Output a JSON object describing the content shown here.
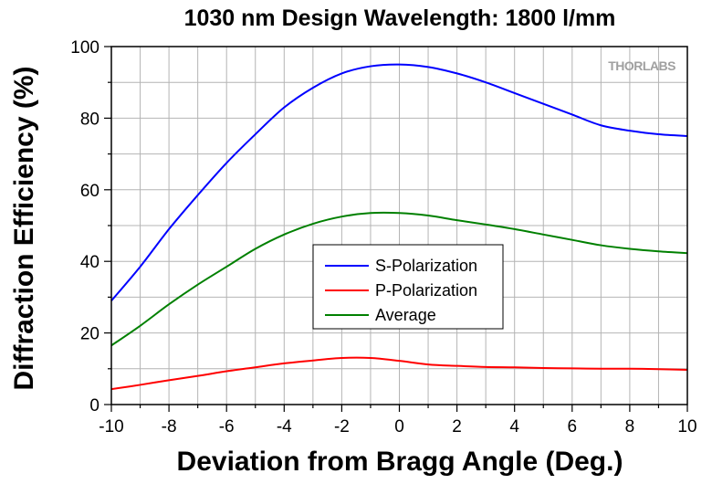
{
  "chart_data": {
    "type": "line",
    "title": "1030 nm Design Wavelength: 1800 l/mm",
    "xlabel": "Deviation from Bragg Angle (Deg.)",
    "ylabel": "Diffraction Efficiency (%)",
    "xlim": [
      -10,
      10
    ],
    "ylim": [
      0,
      100
    ],
    "xticks": [
      -10,
      -8,
      -6,
      -4,
      -2,
      0,
      2,
      4,
      6,
      8,
      10
    ],
    "yticks": [
      0,
      20,
      40,
      60,
      80,
      100
    ],
    "grid": true,
    "legend_position": "center",
    "watermark": "THORLABS",
    "series": [
      {
        "name": "S-Polarization",
        "color": "#0000ff",
        "x": [
          -10,
          -9,
          -8,
          -7,
          -6,
          -5,
          -4,
          -3,
          -2,
          -1,
          0,
          1,
          2,
          3,
          4,
          5,
          6,
          7,
          8,
          9,
          10
        ],
        "y": [
          29,
          38.5,
          49,
          58.5,
          67.5,
          75.5,
          83,
          88.5,
          92.5,
          94.5,
          95,
          94.3,
          92.5,
          90,
          87,
          84,
          81,
          78,
          76.5,
          75.5,
          75
        ]
      },
      {
        "name": "P-Polarization",
        "color": "#ff0000",
        "x": [
          -10,
          -9,
          -8,
          -7,
          -6,
          -5,
          -4,
          -3,
          -2,
          -1,
          0,
          1,
          2,
          3,
          4,
          5,
          6,
          7,
          8,
          9,
          10
        ],
        "y": [
          4.3,
          5.5,
          6.8,
          8,
          9.3,
          10.4,
          11.5,
          12.3,
          13,
          13,
          12.2,
          11.2,
          10.8,
          10.5,
          10.4,
          10.2,
          10.1,
          10,
          10,
          9.9,
          9.7
        ]
      },
      {
        "name": "Average",
        "color": "#008000",
        "x": [
          -10,
          -9,
          -8,
          -7,
          -6,
          -5,
          -4,
          -3,
          -2,
          -1,
          0,
          1,
          2,
          3,
          4,
          5,
          6,
          7,
          8,
          9,
          10
        ],
        "y": [
          16.5,
          22,
          28,
          33.5,
          38.5,
          43.5,
          47.5,
          50.5,
          52.5,
          53.5,
          53.5,
          52.8,
          51.5,
          50.3,
          49,
          47.5,
          46,
          44.5,
          43.5,
          42.8,
          42.3
        ]
      }
    ]
  }
}
